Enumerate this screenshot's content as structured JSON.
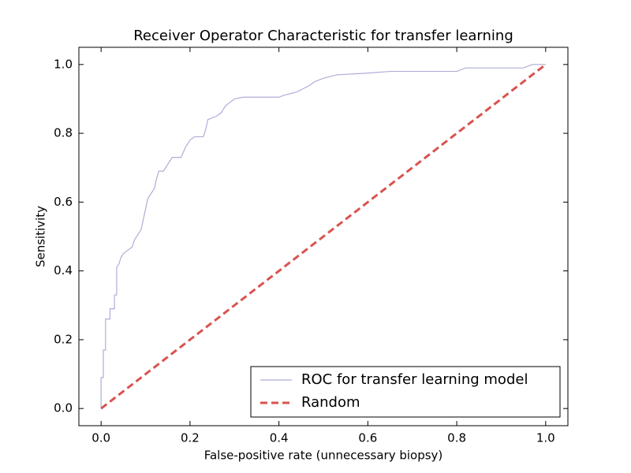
{
  "chart_data": {
    "type": "line",
    "title": "Receiver Operator Characteristic for transfer learning",
    "xlabel": "False-positive rate (unnecessary biopsy)",
    "ylabel": "Sensitivity",
    "xlim": [
      -0.05,
      1.05
    ],
    "ylim": [
      -0.05,
      1.05
    ],
    "xticks": [
      {
        "value": 0,
        "label": "0.0"
      },
      0.2,
      0.4,
      0.6,
      0.8,
      {
        "value": 1,
        "label": "1.0"
      }
    ],
    "yticks": [
      {
        "value": 0,
        "label": "0.0"
      },
      0.2,
      0.4,
      0.6,
      0.8,
      {
        "value": 1,
        "label": "1.0"
      }
    ],
    "legend": "lower right",
    "series": [
      {
        "name": "ROC for transfer learning model",
        "color": "#aeaed8",
        "dash": false,
        "x": [
          0,
          0,
          0.005,
          0.005,
          0.01,
          0.01,
          0.02,
          0.02,
          0.03,
          0.03,
          0.035,
          0.035,
          0.04,
          0.045,
          0.05,
          0.06,
          0.07,
          0.075,
          0.08,
          0.09,
          0.095,
          0.1,
          0.105,
          0.11,
          0.12,
          0.125,
          0.13,
          0.14,
          0.15,
          0.16,
          0.18,
          0.19,
          0.2,
          0.21,
          0.23,
          0.235,
          0.24,
          0.26,
          0.27,
          0.28,
          0.29,
          0.3,
          0.32,
          0.4,
          0.41,
          0.44,
          0.47,
          0.48,
          0.5,
          0.53,
          0.6,
          0.65,
          0.8,
          0.82,
          0.95,
          0.97,
          1.0
        ],
        "values": [
          0,
          0.09,
          0.09,
          0.17,
          0.17,
          0.26,
          0.26,
          0.29,
          0.29,
          0.33,
          0.33,
          0.41,
          0.42,
          0.44,
          0.45,
          0.46,
          0.47,
          0.49,
          0.5,
          0.52,
          0.55,
          0.58,
          0.61,
          0.62,
          0.64,
          0.67,
          0.69,
          0.69,
          0.71,
          0.73,
          0.73,
          0.76,
          0.78,
          0.79,
          0.79,
          0.81,
          0.84,
          0.85,
          0.86,
          0.88,
          0.89,
          0.9,
          0.905,
          0.905,
          0.91,
          0.92,
          0.94,
          0.95,
          0.96,
          0.97,
          0.975,
          0.98,
          0.98,
          0.99,
          0.99,
          1.0,
          1.0
        ]
      },
      {
        "name": "Random",
        "color": "#d9534f",
        "dash": true,
        "x": [
          0,
          1
        ],
        "values": [
          0,
          1
        ]
      }
    ]
  }
}
